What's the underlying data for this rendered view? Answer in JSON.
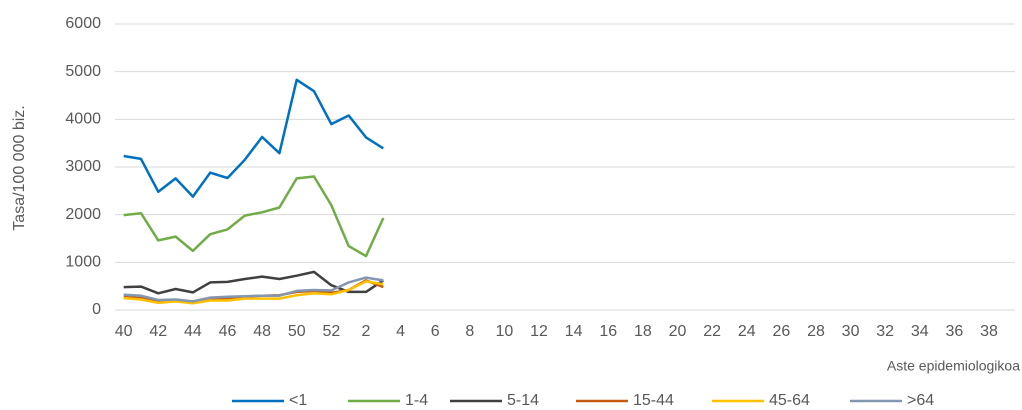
{
  "chart_data": {
    "type": "line",
    "y_label": "Tasa/100 000 biz.",
    "x_label": "Aste epidemiologikoa",
    "categories": [
      "40",
      null,
      "42",
      null,
      "44",
      null,
      "46",
      null,
      "48",
      null,
      "50",
      null,
      "52",
      null,
      "2",
      null,
      "4",
      null,
      "6",
      null,
      "8",
      null,
      "10",
      null,
      "12",
      null,
      "14",
      null,
      "16",
      null,
      "18",
      null,
      "20",
      null,
      "22",
      null,
      "24",
      null,
      "26",
      null,
      "28",
      null,
      "30",
      null,
      "32",
      null,
      "34",
      null,
      "36",
      null,
      "38",
      null
    ],
    "ylim": [
      0,
      6000
    ],
    "yticks": [
      0,
      1000,
      2000,
      3000,
      4000,
      5000,
      6000
    ],
    "grid": true,
    "legend": "bottom",
    "series": [
      {
        "name": "<1",
        "color": "#0070c0",
        "values": [
          3230,
          3170,
          2480,
          2760,
          2380,
          2880,
          2770,
          3150,
          3630,
          3290,
          4830,
          4590,
          3900,
          4080,
          3620,
          3390,
          null,
          null,
          null,
          null,
          null,
          null,
          null,
          null,
          null,
          null,
          null,
          null,
          null,
          null,
          null,
          null,
          null,
          null,
          null,
          null,
          null,
          null,
          null,
          null,
          null,
          null,
          null,
          null,
          null,
          null,
          null,
          null,
          null,
          null,
          null,
          null
        ]
      },
      {
        "name": "1-4",
        "color": "#70ad47",
        "values": [
          1990,
          2030,
          1460,
          1540,
          1240,
          1590,
          1690,
          1980,
          2050,
          2150,
          2760,
          2800,
          2200,
          1340,
          1130,
          1930,
          null,
          null,
          null,
          null,
          null,
          null,
          null,
          null,
          null,
          null,
          null,
          null,
          null,
          null,
          null,
          null,
          null,
          null,
          null,
          null,
          null,
          null,
          null,
          null,
          null,
          null,
          null,
          null,
          null,
          null,
          null,
          null,
          null,
          null,
          null,
          null
        ]
      },
      {
        "name": "5-14",
        "color": "#404040",
        "values": [
          480,
          490,
          350,
          440,
          370,
          580,
          590,
          650,
          700,
          650,
          720,
          800,
          520,
          380,
          380,
          620,
          null,
          null,
          null,
          null,
          null,
          null,
          null,
          null,
          null,
          null,
          null,
          null,
          null,
          null,
          null,
          null,
          null,
          null,
          null,
          null,
          null,
          null,
          null,
          null,
          null,
          null,
          null,
          null,
          null,
          null,
          null,
          null,
          null,
          null,
          null,
          null
        ]
      },
      {
        "name": "15-44",
        "color": "#c55a11",
        "values": [
          270,
          250,
          180,
          200,
          160,
          240,
          250,
          280,
          300,
          310,
          380,
          400,
          360,
          420,
          620,
          480,
          null,
          null,
          null,
          null,
          null,
          null,
          null,
          null,
          null,
          null,
          null,
          null,
          null,
          null,
          null,
          null,
          null,
          null,
          null,
          null,
          null,
          null,
          null,
          null,
          null,
          null,
          null,
          null,
          null,
          null,
          null,
          null,
          null,
          null,
          null,
          null
        ]
      },
      {
        "name": "45-64",
        "color": "#ffc000",
        "values": [
          250,
          220,
          150,
          180,
          140,
          200,
          200,
          240,
          240,
          240,
          310,
          350,
          330,
          420,
          600,
          540,
          null,
          null,
          null,
          null,
          null,
          null,
          null,
          null,
          null,
          null,
          null,
          null,
          null,
          null,
          null,
          null,
          null,
          null,
          null,
          null,
          null,
          null,
          null,
          null,
          null,
          null,
          null,
          null,
          null,
          null,
          null,
          null,
          null,
          null,
          null,
          null
        ]
      },
      {
        "name": ">64",
        "color": "#8497b0",
        "values": [
          320,
          300,
          210,
          220,
          180,
          260,
          280,
          290,
          300,
          300,
          400,
          420,
          410,
          580,
          680,
          620,
          null,
          null,
          null,
          null,
          null,
          null,
          null,
          null,
          null,
          null,
          null,
          null,
          null,
          null,
          null,
          null,
          null,
          null,
          null,
          null,
          null,
          null,
          null,
          null,
          null,
          null,
          null,
          null,
          null,
          null,
          null,
          null,
          null,
          null,
          null,
          null
        ]
      }
    ]
  }
}
